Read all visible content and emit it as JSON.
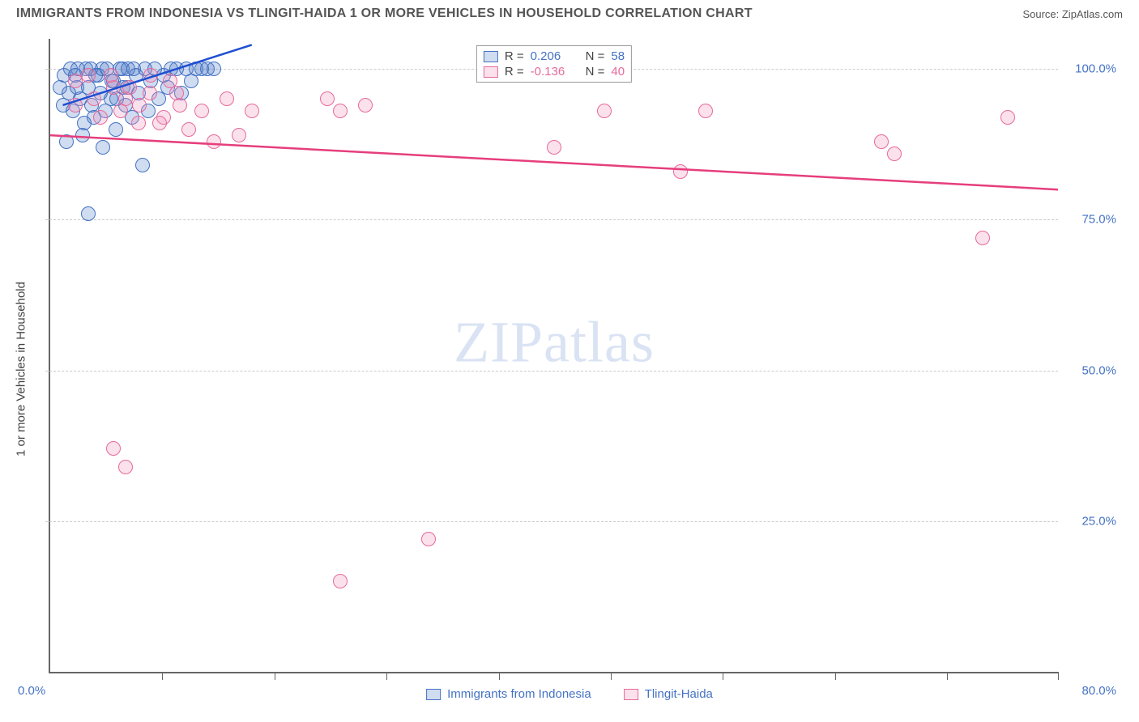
{
  "title": "IMMIGRANTS FROM INDONESIA VS TLINGIT-HAIDA 1 OR MORE VEHICLES IN HOUSEHOLD CORRELATION CHART",
  "source": "Source: ZipAtlas.com",
  "watermark": "ZIPatlas",
  "y_axis_title": "1 or more Vehicles in Household",
  "colors": {
    "text_blue": "#4472c4",
    "text_pink": "#e76a9b",
    "blue_fill": "rgba(68,114,196,0.25)",
    "blue_stroke": "#4472c4",
    "pink_fill": "rgba(241,148,185,0.28)",
    "pink_stroke": "#e76a9b",
    "grid": "#cccccc",
    "title": "#555555",
    "trend_blue": "#1f4fd1",
    "trend_pink": "#e63e7c"
  },
  "legend_top": [
    {
      "swatch": "blue",
      "r_label": "R =",
      "r_value": "0.206",
      "n_label": "N =",
      "n_value": "58"
    },
    {
      "swatch": "pink",
      "r_label": "R =",
      "r_value": "-0.136",
      "n_label": "N =",
      "n_value": "40"
    }
  ],
  "legend_bottom": [
    {
      "swatch": "blue",
      "label": "Immigrants from Indonesia"
    },
    {
      "swatch": "pink",
      "label": "Tlingit-Haida"
    }
  ],
  "chart": {
    "type": "scatter",
    "xlim": [
      0,
      80
    ],
    "ylim": [
      0,
      105
    ],
    "x_ticks": [
      0,
      8.9,
      17.8,
      26.7,
      35.6,
      44.5,
      53.4,
      62.3,
      71.2,
      80
    ],
    "y_gridlines": [
      25,
      50,
      75,
      100
    ],
    "y_labels": [
      {
        "v": 25,
        "t": "25.0%"
      },
      {
        "v": 50,
        "t": "50.0%"
      },
      {
        "v": 75,
        "t": "75.0%"
      },
      {
        "v": 100,
        "t": "100.0%"
      }
    ],
    "x_labels": {
      "start": "0.0%",
      "end": "80.0%"
    },
    "marker_radius": 9,
    "series": [
      {
        "name": "Immigrants from Indonesia",
        "color_key": "blue",
        "points": [
          [
            1,
            94
          ],
          [
            1.5,
            96
          ],
          [
            2,
            99
          ],
          [
            2.2,
            100
          ],
          [
            2.4,
            95
          ],
          [
            2.7,
            91
          ],
          [
            3,
            97
          ],
          [
            3.2,
            100
          ],
          [
            3.5,
            92
          ],
          [
            3.8,
            99
          ],
          [
            4,
            96
          ],
          [
            4.2,
            87
          ],
          [
            4.5,
            100
          ],
          [
            4.8,
            95
          ],
          [
            5,
            98
          ],
          [
            5.2,
            90
          ],
          [
            5.5,
            100
          ],
          [
            5.8,
            97
          ],
          [
            6,
            94
          ],
          [
            6.2,
            100
          ],
          [
            6.5,
            92
          ],
          [
            6.8,
            99
          ],
          [
            7,
            96
          ],
          [
            7.3,
            84
          ],
          [
            7.5,
            100
          ],
          [
            7.8,
            93
          ],
          [
            8,
            98
          ],
          [
            8.3,
            100
          ],
          [
            8.6,
            95
          ],
          [
            9,
            99
          ],
          [
            9.3,
            97
          ],
          [
            9.6,
            100
          ],
          [
            10,
            100
          ],
          [
            10.4,
            96
          ],
          [
            10.8,
            100
          ],
          [
            11.2,
            98
          ],
          [
            11.6,
            100
          ],
          [
            12,
            100
          ],
          [
            12.5,
            100
          ],
          [
            13,
            100
          ],
          [
            3,
            76
          ],
          [
            1.3,
            88
          ],
          [
            2.6,
            89
          ],
          [
            1.8,
            93
          ],
          [
            0.8,
            97
          ],
          [
            1.1,
            99
          ],
          [
            1.6,
            100
          ],
          [
            2.1,
            97
          ],
          [
            2.8,
            100
          ],
          [
            3.3,
            94
          ],
          [
            3.6,
            99
          ],
          [
            4.1,
            100
          ],
          [
            4.4,
            93
          ],
          [
            4.9,
            98
          ],
          [
            5.3,
            95
          ],
          [
            5.7,
            100
          ],
          [
            6.1,
            97
          ],
          [
            6.6,
            100
          ]
        ],
        "trend": {
          "x1": 1,
          "y1": 94,
          "x2": 16,
          "y2": 104
        }
      },
      {
        "name": "Tlingit-Haida",
        "color_key": "pink",
        "points": [
          [
            2,
            94
          ],
          [
            3,
            99
          ],
          [
            4,
            92
          ],
          [
            5,
            97
          ],
          [
            6,
            95
          ],
          [
            7,
            91
          ],
          [
            8,
            99
          ],
          [
            9,
            92
          ],
          [
            10,
            96
          ],
          [
            11,
            90
          ],
          [
            12,
            93
          ],
          [
            13,
            88
          ],
          [
            14,
            95
          ],
          [
            15,
            89
          ],
          [
            16,
            93
          ],
          [
            22,
            95
          ],
          [
            23,
            93
          ],
          [
            25,
            94
          ],
          [
            30,
            22
          ],
          [
            23,
            15
          ],
          [
            40,
            87
          ],
          [
            44,
            93
          ],
          [
            50,
            83
          ],
          [
            52,
            93
          ],
          [
            66,
            88
          ],
          [
            67,
            86
          ],
          [
            76,
            92
          ],
          [
            74,
            72
          ],
          [
            5,
            37
          ],
          [
            6,
            34
          ],
          [
            2,
            98
          ],
          [
            3.5,
            95
          ],
          [
            4.8,
            99
          ],
          [
            5.6,
            93
          ],
          [
            6.3,
            97
          ],
          [
            7.1,
            94
          ],
          [
            7.9,
            96
          ],
          [
            8.7,
            91
          ],
          [
            9.5,
            98
          ],
          [
            10.3,
            94
          ]
        ],
        "trend": {
          "x1": 0,
          "y1": 89,
          "x2": 80,
          "y2": 80
        }
      }
    ]
  }
}
